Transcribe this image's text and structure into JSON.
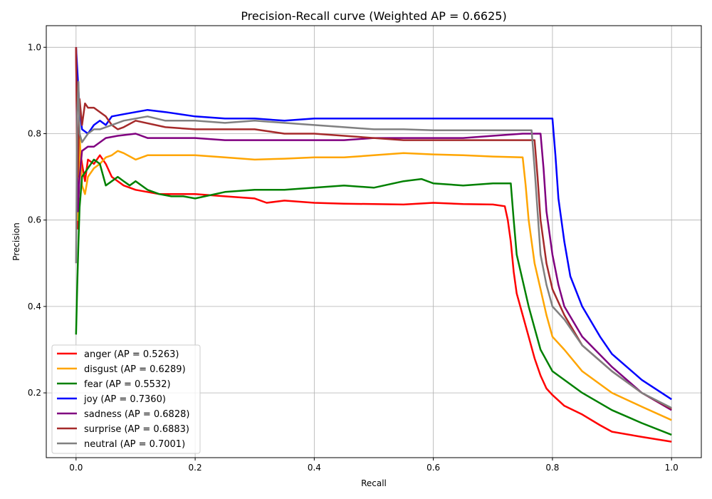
{
  "chart_data": {
    "type": "line",
    "title": "Precision-Recall curve (Weighted AP = 0.6625)",
    "xlabel": "Recall",
    "ylabel": "Precision",
    "xlim": [
      -0.05,
      1.05
    ],
    "ylim": [
      0.05,
      1.05
    ],
    "xticks": [
      "0.0",
      "0.2",
      "0.4",
      "0.6",
      "0.8",
      "1.0"
    ],
    "yticks": [
      "0.2",
      "0.4",
      "0.6",
      "0.8",
      "1.0"
    ],
    "grid": true,
    "legend_position": "lower left",
    "series": [
      {
        "name": "anger (AP = 0.5263)",
        "color": "#ff0000",
        "points": [
          [
            0,
            1.0
          ],
          [
            0.003,
            0.58
          ],
          [
            0.006,
            0.77
          ],
          [
            0.01,
            0.73
          ],
          [
            0.015,
            0.69
          ],
          [
            0.02,
            0.74
          ],
          [
            0.03,
            0.73
          ],
          [
            0.04,
            0.75
          ],
          [
            0.05,
            0.73
          ],
          [
            0.06,
            0.7
          ],
          [
            0.07,
            0.69
          ],
          [
            0.08,
            0.68
          ],
          [
            0.1,
            0.67
          ],
          [
            0.12,
            0.665
          ],
          [
            0.14,
            0.66
          ],
          [
            0.16,
            0.66
          ],
          [
            0.2,
            0.66
          ],
          [
            0.25,
            0.655
          ],
          [
            0.3,
            0.65
          ],
          [
            0.32,
            0.64
          ],
          [
            0.35,
            0.645
          ],
          [
            0.4,
            0.64
          ],
          [
            0.45,
            0.638
          ],
          [
            0.5,
            0.637
          ],
          [
            0.55,
            0.636
          ],
          [
            0.6,
            0.64
          ],
          [
            0.65,
            0.637
          ],
          [
            0.7,
            0.636
          ],
          [
            0.72,
            0.632
          ],
          [
            0.725,
            0.6
          ],
          [
            0.73,
            0.55
          ],
          [
            0.735,
            0.48
          ],
          [
            0.74,
            0.43
          ],
          [
            0.75,
            0.38
          ],
          [
            0.76,
            0.33
          ],
          [
            0.77,
            0.28
          ],
          [
            0.78,
            0.24
          ],
          [
            0.79,
            0.21
          ],
          [
            0.8,
            0.195
          ],
          [
            0.82,
            0.17
          ],
          [
            0.85,
            0.15
          ],
          [
            0.88,
            0.125
          ],
          [
            0.9,
            0.11
          ],
          [
            0.95,
            0.098
          ],
          [
            1.0,
            0.087
          ]
        ]
      },
      {
        "name": "disgust (AP = 0.6289)",
        "color": "#ffa500",
        "points": [
          [
            0,
            1.0
          ],
          [
            0.003,
            0.6
          ],
          [
            0.006,
            0.8
          ],
          [
            0.01,
            0.68
          ],
          [
            0.015,
            0.66
          ],
          [
            0.02,
            0.7
          ],
          [
            0.03,
            0.72
          ],
          [
            0.04,
            0.73
          ],
          [
            0.05,
            0.745
          ],
          [
            0.06,
            0.75
          ],
          [
            0.07,
            0.76
          ],
          [
            0.08,
            0.755
          ],
          [
            0.1,
            0.74
          ],
          [
            0.12,
            0.75
          ],
          [
            0.15,
            0.75
          ],
          [
            0.2,
            0.75
          ],
          [
            0.25,
            0.745
          ],
          [
            0.3,
            0.74
          ],
          [
            0.35,
            0.742
          ],
          [
            0.4,
            0.745
          ],
          [
            0.45,
            0.745
          ],
          [
            0.5,
            0.75
          ],
          [
            0.55,
            0.755
          ],
          [
            0.6,
            0.752
          ],
          [
            0.65,
            0.75
          ],
          [
            0.7,
            0.747
          ],
          [
            0.75,
            0.745
          ],
          [
            0.755,
            0.68
          ],
          [
            0.76,
            0.6
          ],
          [
            0.77,
            0.5
          ],
          [
            0.78,
            0.44
          ],
          [
            0.79,
            0.38
          ],
          [
            0.8,
            0.33
          ],
          [
            0.82,
            0.3
          ],
          [
            0.85,
            0.25
          ],
          [
            0.9,
            0.2
          ],
          [
            0.95,
            0.168
          ],
          [
            1.0,
            0.137
          ]
        ]
      },
      {
        "name": "fear (AP = 0.5532)",
        "color": "#008000",
        "points": [
          [
            0,
            0.335
          ],
          [
            0.002,
            0.45
          ],
          [
            0.004,
            0.55
          ],
          [
            0.006,
            0.63
          ],
          [
            0.01,
            0.7
          ],
          [
            0.02,
            0.72
          ],
          [
            0.03,
            0.74
          ],
          [
            0.04,
            0.73
          ],
          [
            0.05,
            0.68
          ],
          [
            0.06,
            0.69
          ],
          [
            0.07,
            0.7
          ],
          [
            0.08,
            0.69
          ],
          [
            0.09,
            0.68
          ],
          [
            0.1,
            0.69
          ],
          [
            0.12,
            0.67
          ],
          [
            0.14,
            0.66
          ],
          [
            0.16,
            0.655
          ],
          [
            0.18,
            0.655
          ],
          [
            0.2,
            0.65
          ],
          [
            0.25,
            0.665
          ],
          [
            0.3,
            0.67
          ],
          [
            0.35,
            0.67
          ],
          [
            0.4,
            0.675
          ],
          [
            0.45,
            0.68
          ],
          [
            0.5,
            0.675
          ],
          [
            0.55,
            0.69
          ],
          [
            0.58,
            0.695
          ],
          [
            0.6,
            0.685
          ],
          [
            0.65,
            0.68
          ],
          [
            0.7,
            0.685
          ],
          [
            0.73,
            0.685
          ],
          [
            0.735,
            0.6
          ],
          [
            0.74,
            0.52
          ],
          [
            0.75,
            0.46
          ],
          [
            0.76,
            0.4
          ],
          [
            0.77,
            0.35
          ],
          [
            0.78,
            0.3
          ],
          [
            0.8,
            0.25
          ],
          [
            0.85,
            0.2
          ],
          [
            0.9,
            0.16
          ],
          [
            0.95,
            0.13
          ],
          [
            1.0,
            0.103
          ]
        ]
      },
      {
        "name": "joy (AP = 0.7360)",
        "color": "#0000ff",
        "points": [
          [
            0,
            1.0
          ],
          [
            0.002,
            0.95
          ],
          [
            0.004,
            0.9
          ],
          [
            0.006,
            0.86
          ],
          [
            0.01,
            0.81
          ],
          [
            0.02,
            0.8
          ],
          [
            0.03,
            0.82
          ],
          [
            0.04,
            0.83
          ],
          [
            0.05,
            0.82
          ],
          [
            0.06,
            0.84
          ],
          [
            0.08,
            0.845
          ],
          [
            0.1,
            0.85
          ],
          [
            0.12,
            0.855
          ],
          [
            0.15,
            0.85
          ],
          [
            0.2,
            0.84
          ],
          [
            0.25,
            0.835
          ],
          [
            0.3,
            0.835
          ],
          [
            0.35,
            0.83
          ],
          [
            0.4,
            0.835
          ],
          [
            0.45,
            0.835
          ],
          [
            0.5,
            0.835
          ],
          [
            0.55,
            0.835
          ],
          [
            0.6,
            0.835
          ],
          [
            0.65,
            0.835
          ],
          [
            0.7,
            0.835
          ],
          [
            0.75,
            0.835
          ],
          [
            0.8,
            0.835
          ],
          [
            0.805,
            0.75
          ],
          [
            0.81,
            0.65
          ],
          [
            0.82,
            0.55
          ],
          [
            0.83,
            0.47
          ],
          [
            0.85,
            0.4
          ],
          [
            0.88,
            0.33
          ],
          [
            0.9,
            0.29
          ],
          [
            0.95,
            0.23
          ],
          [
            1.0,
            0.185
          ]
        ]
      },
      {
        "name": "sadness (AP = 0.6828)",
        "color": "#800080",
        "points": [
          [
            0,
            1.0
          ],
          [
            0.003,
            0.62
          ],
          [
            0.006,
            0.7
          ],
          [
            0.01,
            0.76
          ],
          [
            0.02,
            0.77
          ],
          [
            0.03,
            0.77
          ],
          [
            0.05,
            0.79
          ],
          [
            0.07,
            0.795
          ],
          [
            0.1,
            0.8
          ],
          [
            0.12,
            0.79
          ],
          [
            0.15,
            0.79
          ],
          [
            0.2,
            0.79
          ],
          [
            0.25,
            0.785
          ],
          [
            0.3,
            0.785
          ],
          [
            0.35,
            0.785
          ],
          [
            0.4,
            0.785
          ],
          [
            0.45,
            0.785
          ],
          [
            0.5,
            0.79
          ],
          [
            0.55,
            0.79
          ],
          [
            0.6,
            0.79
          ],
          [
            0.65,
            0.79
          ],
          [
            0.7,
            0.795
          ],
          [
            0.75,
            0.8
          ],
          [
            0.78,
            0.8
          ],
          [
            0.785,
            0.72
          ],
          [
            0.79,
            0.62
          ],
          [
            0.8,
            0.52
          ],
          [
            0.81,
            0.45
          ],
          [
            0.82,
            0.4
          ],
          [
            0.85,
            0.33
          ],
          [
            0.9,
            0.26
          ],
          [
            0.95,
            0.2
          ],
          [
            1.0,
            0.16
          ]
        ]
      },
      {
        "name": "surprise (AP = 0.6883)",
        "color": "#a52a2a",
        "points": [
          [
            0,
            1.0
          ],
          [
            0.003,
            0.7
          ],
          [
            0.006,
            0.88
          ],
          [
            0.01,
            0.82
          ],
          [
            0.015,
            0.87
          ],
          [
            0.02,
            0.86
          ],
          [
            0.03,
            0.86
          ],
          [
            0.04,
            0.85
          ],
          [
            0.05,
            0.84
          ],
          [
            0.06,
            0.82
          ],
          [
            0.07,
            0.81
          ],
          [
            0.08,
            0.815
          ],
          [
            0.1,
            0.83
          ],
          [
            0.15,
            0.815
          ],
          [
            0.2,
            0.81
          ],
          [
            0.25,
            0.81
          ],
          [
            0.3,
            0.81
          ],
          [
            0.35,
            0.8
          ],
          [
            0.4,
            0.8
          ],
          [
            0.45,
            0.795
          ],
          [
            0.5,
            0.79
          ],
          [
            0.55,
            0.785
          ],
          [
            0.6,
            0.785
          ],
          [
            0.65,
            0.785
          ],
          [
            0.7,
            0.785
          ],
          [
            0.77,
            0.785
          ],
          [
            0.775,
            0.7
          ],
          [
            0.78,
            0.6
          ],
          [
            0.79,
            0.5
          ],
          [
            0.8,
            0.44
          ],
          [
            0.82,
            0.38
          ],
          [
            0.85,
            0.31
          ],
          [
            0.9,
            0.25
          ],
          [
            0.95,
            0.2
          ],
          [
            1.0,
            0.163
          ]
        ]
      },
      {
        "name": "neutral (AP = 0.7001)",
        "color": "#808080",
        "points": [
          [
            0,
            0.5
          ],
          [
            0.002,
            0.85
          ],
          [
            0.004,
            0.92
          ],
          [
            0.006,
            0.8
          ],
          [
            0.01,
            0.78
          ],
          [
            0.02,
            0.8
          ],
          [
            0.03,
            0.81
          ],
          [
            0.04,
            0.81
          ],
          [
            0.06,
            0.82
          ],
          [
            0.08,
            0.83
          ],
          [
            0.1,
            0.835
          ],
          [
            0.12,
            0.84
          ],
          [
            0.15,
            0.83
          ],
          [
            0.2,
            0.83
          ],
          [
            0.25,
            0.825
          ],
          [
            0.3,
            0.83
          ],
          [
            0.35,
            0.825
          ],
          [
            0.4,
            0.82
          ],
          [
            0.45,
            0.815
          ],
          [
            0.5,
            0.81
          ],
          [
            0.55,
            0.81
          ],
          [
            0.6,
            0.808
          ],
          [
            0.65,
            0.808
          ],
          [
            0.7,
            0.808
          ],
          [
            0.765,
            0.808
          ],
          [
            0.77,
            0.72
          ],
          [
            0.775,
            0.62
          ],
          [
            0.78,
            0.52
          ],
          [
            0.79,
            0.45
          ],
          [
            0.8,
            0.4
          ],
          [
            0.82,
            0.37
          ],
          [
            0.85,
            0.31
          ],
          [
            0.9,
            0.25
          ],
          [
            0.95,
            0.2
          ],
          [
            1.0,
            0.165
          ]
        ]
      }
    ]
  }
}
